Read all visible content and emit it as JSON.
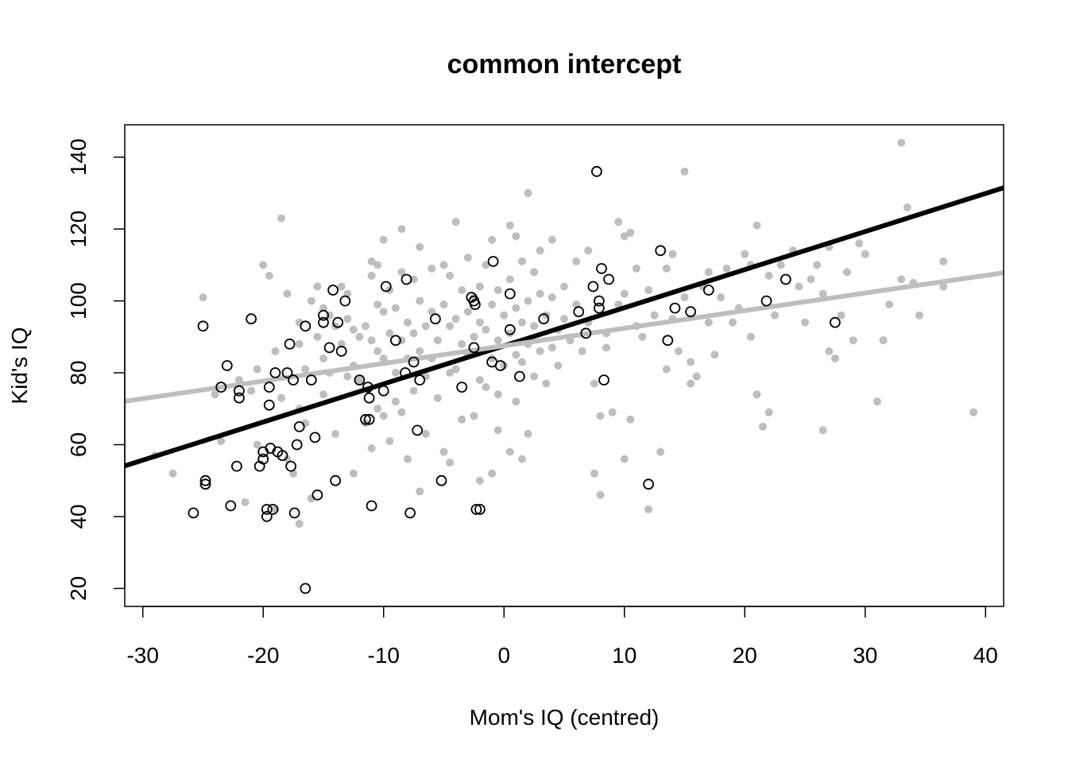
{
  "chart_data": {
    "type": "scatter",
    "title": "common intercept",
    "xlabel": "Mom's IQ (centred)",
    "ylabel": "Kid's IQ",
    "xlim": [
      -31.5,
      41.5
    ],
    "ylim": [
      15,
      149
    ],
    "xticks": [
      -30,
      -20,
      -10,
      0,
      10,
      20,
      30,
      40
    ],
    "yticks": [
      20,
      40,
      60,
      80,
      100,
      120,
      140
    ],
    "grid": false,
    "legend": "none",
    "colors": {
      "filled": "#bebebe",
      "open": "#000000",
      "fit_open": "#000000",
      "fit_filled": "#bebebe"
    },
    "series": [
      {
        "marker": "filled",
        "points": [
          [
            -25,
            101
          ],
          [
            -29,
            57
          ],
          [
            -27.5,
            52
          ],
          [
            -24,
            74
          ],
          [
            -23.5,
            61
          ],
          [
            -22,
            78
          ],
          [
            -21.5,
            44
          ],
          [
            -21,
            75
          ],
          [
            -20.5,
            81
          ],
          [
            -20.5,
            60
          ],
          [
            -20,
            110
          ],
          [
            -19.5,
            107
          ],
          [
            -19,
            86
          ],
          [
            -19,
            42
          ],
          [
            -18.5,
            123
          ],
          [
            -18.5,
            73
          ],
          [
            -18,
            102
          ],
          [
            -18,
            56
          ],
          [
            -17.5,
            52
          ],
          [
            -17,
            94
          ],
          [
            -17,
            88
          ],
          [
            -17,
            70
          ],
          [
            -17,
            38
          ],
          [
            -16.5,
            81
          ],
          [
            -16.5,
            66
          ],
          [
            -16,
            100
          ],
          [
            -16,
            45
          ],
          [
            -15.5,
            104
          ],
          [
            -15.5,
            90
          ],
          [
            -15,
            98
          ],
          [
            -15,
            84
          ],
          [
            -15,
            74
          ],
          [
            -14.5,
            96
          ],
          [
            -14.5,
            80
          ],
          [
            -14,
            93
          ],
          [
            -14,
            63
          ],
          [
            -13.5,
            104
          ],
          [
            -13.5,
            88
          ],
          [
            -13,
            102
          ],
          [
            -13,
            95
          ],
          [
            -13,
            79
          ],
          [
            -12.5,
            92
          ],
          [
            -12.5,
            82
          ],
          [
            -12.5,
            52
          ],
          [
            -12,
            90
          ],
          [
            -12,
            78
          ],
          [
            -11.5,
            93
          ],
          [
            -11.5,
            66
          ],
          [
            -11,
            111
          ],
          [
            -11,
            107
          ],
          [
            -11,
            89
          ],
          [
            -11,
            59
          ],
          [
            -10.5,
            110
          ],
          [
            -10.5,
            99
          ],
          [
            -10.5,
            86
          ],
          [
            -10.5,
            70
          ],
          [
            -10,
            117
          ],
          [
            -10,
            97
          ],
          [
            -10,
            84
          ],
          [
            -10,
            68
          ],
          [
            -9.5,
            103
          ],
          [
            -9.5,
            91
          ],
          [
            -9.5,
            61
          ],
          [
            -9,
            98
          ],
          [
            -9,
            80
          ],
          [
            -9,
            72
          ],
          [
            -8.5,
            120
          ],
          [
            -8.5,
            108
          ],
          [
            -8.5,
            89
          ],
          [
            -8.5,
            69
          ],
          [
            -8,
            94
          ],
          [
            -8,
            84
          ],
          [
            -8,
            56
          ],
          [
            -7.5,
            106
          ],
          [
            -7.5,
            91
          ],
          [
            -7.5,
            75
          ],
          [
            -7,
            115
          ],
          [
            -7,
            100
          ],
          [
            -7,
            86
          ],
          [
            -7,
            47
          ],
          [
            -6.5,
            93
          ],
          [
            -6.5,
            79
          ],
          [
            -6.5,
            63
          ],
          [
            -6,
            109
          ],
          [
            -6,
            97
          ],
          [
            -6,
            84
          ],
          [
            -5.5,
            89
          ],
          [
            -5.5,
            73
          ],
          [
            -5,
            110
          ],
          [
            -5,
            99
          ],
          [
            -5,
            58
          ],
          [
            -4.5,
            107
          ],
          [
            -4.5,
            93
          ],
          [
            -4.5,
            80
          ],
          [
            -4.5,
            55
          ],
          [
            -4,
            122
          ],
          [
            -4,
            95
          ],
          [
            -4,
            81
          ],
          [
            -3.5,
            103
          ],
          [
            -3.5,
            88
          ],
          [
            -3.5,
            67
          ],
          [
            -3,
            112
          ],
          [
            -3,
            97
          ],
          [
            -3,
            85
          ],
          [
            -2.5,
            101
          ],
          [
            -2.5,
            90
          ],
          [
            -2.5,
            68
          ],
          [
            -2,
            104
          ],
          [
            -2,
            94
          ],
          [
            -2,
            78
          ],
          [
            -2,
            50
          ],
          [
            -1.5,
            110
          ],
          [
            -1.5,
            92
          ],
          [
            -1.5,
            76
          ],
          [
            -1,
            117
          ],
          [
            -1,
            99
          ],
          [
            -1,
            84
          ],
          [
            -1,
            52
          ],
          [
            -0.5,
            103
          ],
          [
            -0.5,
            89
          ],
          [
            -0.5,
            74
          ],
          [
            -0.5,
            64
          ],
          [
            0,
            96
          ],
          [
            0,
            82
          ],
          [
            0.5,
            121
          ],
          [
            0.5,
            106
          ],
          [
            0.5,
            91
          ],
          [
            0.5,
            58
          ],
          [
            1,
            118
          ],
          [
            1,
            98
          ],
          [
            1,
            85
          ],
          [
            1,
            72
          ],
          [
            1.5,
            111
          ],
          [
            1.5,
            94
          ],
          [
            1.5,
            83
          ],
          [
            1.5,
            56
          ],
          [
            2,
            130
          ],
          [
            2,
            100
          ],
          [
            2,
            88
          ],
          [
            2,
            63
          ],
          [
            2.5,
            108
          ],
          [
            2.5,
            93
          ],
          [
            2.5,
            79
          ],
          [
            3,
            114
          ],
          [
            3,
            102
          ],
          [
            3,
            86
          ],
          [
            3.5,
            96
          ],
          [
            3.5,
            77
          ],
          [
            4,
            117
          ],
          [
            4,
            101
          ],
          [
            4,
            87
          ],
          [
            4.5,
            92
          ],
          [
            4.5,
            82
          ],
          [
            5,
            104
          ],
          [
            5,
            95
          ],
          [
            5.5,
            89
          ],
          [
            6,
            111
          ],
          [
            6,
            99
          ],
          [
            6.5,
            86
          ],
          [
            7,
            114
          ],
          [
            7,
            94
          ],
          [
            7.5,
            52
          ],
          [
            7.5,
            77
          ],
          [
            8,
            46
          ],
          [
            8,
            68
          ],
          [
            8.5,
            91
          ],
          [
            8.5,
            87
          ],
          [
            9,
            69
          ],
          [
            9.5,
            122
          ],
          [
            9.5,
            99
          ],
          [
            10,
            118
          ],
          [
            10,
            102
          ],
          [
            10,
            56
          ],
          [
            10.5,
            119
          ],
          [
            10.5,
            67
          ],
          [
            11,
            109
          ],
          [
            11,
            93
          ],
          [
            11.5,
            90
          ],
          [
            12,
            103
          ],
          [
            12,
            42
          ],
          [
            12.5,
            96
          ],
          [
            13,
            58
          ],
          [
            13.5,
            109
          ],
          [
            13.5,
            81
          ],
          [
            14,
            113
          ],
          [
            14,
            95
          ],
          [
            14.5,
            86
          ],
          [
            15,
            136
          ],
          [
            15,
            101
          ],
          [
            15.5,
            77
          ],
          [
            15.5,
            83
          ],
          [
            16,
            79
          ],
          [
            16.5,
            104
          ],
          [
            17,
            108
          ],
          [
            17,
            94
          ],
          [
            17.5,
            85
          ],
          [
            18,
            101
          ],
          [
            18.5,
            109
          ],
          [
            19,
            94
          ],
          [
            19.5,
            98
          ],
          [
            20,
            113
          ],
          [
            20.5,
            110
          ],
          [
            20.5,
            90
          ],
          [
            21,
            121
          ],
          [
            21,
            74
          ],
          [
            21.5,
            65
          ],
          [
            22,
            107
          ],
          [
            22,
            69
          ],
          [
            22.5,
            96
          ],
          [
            23,
            110
          ],
          [
            24,
            114
          ],
          [
            24.5,
            104
          ],
          [
            25,
            94
          ],
          [
            25.5,
            106
          ],
          [
            26,
            110
          ],
          [
            26.5,
            102
          ],
          [
            26.5,
            64
          ],
          [
            27,
            115
          ],
          [
            27,
            86
          ],
          [
            27.5,
            84
          ],
          [
            28,
            96
          ],
          [
            28.5,
            108
          ],
          [
            29,
            89
          ],
          [
            29.5,
            116
          ],
          [
            30,
            113
          ],
          [
            31,
            72
          ],
          [
            31.5,
            89
          ],
          [
            32,
            99
          ],
          [
            33,
            144
          ],
          [
            33,
            106
          ],
          [
            33.5,
            126
          ],
          [
            34,
            105
          ],
          [
            34.5,
            96
          ],
          [
            36.5,
            111
          ],
          [
            36.5,
            104
          ],
          [
            39,
            69
          ]
        ]
      },
      {
        "marker": "open",
        "points": [
          [
            -25,
            93
          ],
          [
            -23,
            82
          ],
          [
            -22,
            73
          ],
          [
            -22,
            75
          ],
          [
            -23.5,
            76
          ],
          [
            -21,
            95
          ],
          [
            -19.5,
            76
          ],
          [
            -19.5,
            71
          ],
          [
            -19,
            80
          ],
          [
            -18,
            80
          ],
          [
            -17.5,
            78
          ],
          [
            -17.8,
            88
          ],
          [
            -17,
            65
          ],
          [
            -17.2,
            60
          ],
          [
            -16.5,
            93
          ],
          [
            -16,
            78
          ],
          [
            -15.7,
            62
          ],
          [
            -15.5,
            46
          ],
          [
            -15,
            94
          ],
          [
            -15,
            96
          ],
          [
            -14.5,
            87
          ],
          [
            -14.2,
            103
          ],
          [
            -13.8,
            94
          ],
          [
            -13.5,
            86
          ],
          [
            -13.2,
            100
          ],
          [
            -14,
            50
          ],
          [
            -12,
            78
          ],
          [
            -11.5,
            67
          ],
          [
            -11.3,
            76
          ],
          [
            -11.2,
            73
          ],
          [
            -11.2,
            67
          ],
          [
            -11,
            43
          ],
          [
            -10,
            75
          ],
          [
            -9.8,
            104
          ],
          [
            -9,
            89
          ],
          [
            -8.2,
            80
          ],
          [
            -8.1,
            106
          ],
          [
            -7.8,
            41
          ],
          [
            -7.5,
            83
          ],
          [
            -7.2,
            64
          ],
          [
            -7,
            78
          ],
          [
            -5.7,
            95
          ],
          [
            -5.2,
            50
          ],
          [
            -3.5,
            76
          ],
          [
            -2.7,
            101
          ],
          [
            -2.5,
            100
          ],
          [
            -2.4,
            99
          ],
          [
            -2.3,
            42
          ],
          [
            -2,
            42
          ],
          [
            -2.5,
            87
          ],
          [
            -1,
            83
          ],
          [
            -0.9,
            111
          ],
          [
            -0.3,
            82
          ],
          [
            0.5,
            102
          ],
          [
            0.5,
            92
          ],
          [
            1.3,
            79
          ],
          [
            3.3,
            95
          ],
          [
            6.2,
            97
          ],
          [
            6.8,
            91
          ],
          [
            7.4,
            104
          ],
          [
            7.7,
            136
          ],
          [
            7.9,
            100
          ],
          [
            7.9,
            98
          ],
          [
            8.1,
            109
          ],
          [
            8.3,
            78
          ],
          [
            8.7,
            106
          ],
          [
            12,
            49
          ],
          [
            13,
            114
          ],
          [
            13.6,
            89
          ],
          [
            14.2,
            98
          ],
          [
            15.5,
            97
          ],
          [
            17,
            103
          ],
          [
            21.8,
            100
          ],
          [
            23.4,
            106
          ],
          [
            27.5,
            94
          ],
          [
            -25.8,
            41
          ],
          [
            -24.8,
            50
          ],
          [
            -24.8,
            49
          ],
          [
            -22.7,
            43
          ],
          [
            -22.2,
            54
          ],
          [
            -20.3,
            54
          ],
          [
            -20,
            56
          ],
          [
            -20,
            58
          ],
          [
            -19.7,
            40
          ],
          [
            -19.7,
            42
          ],
          [
            -19.4,
            59
          ],
          [
            -19.2,
            42
          ],
          [
            -18.8,
            58
          ],
          [
            -18.4,
            57
          ],
          [
            -17.7,
            54
          ],
          [
            -17.4,
            41
          ],
          [
            -16.5,
            20
          ]
        ]
      }
    ],
    "fit_lines": [
      {
        "marker": "open",
        "intercept": 87.5,
        "slope": 1.06,
        "x": [
          -31.5,
          41.5
        ]
      },
      {
        "marker": "filled",
        "intercept": 87.5,
        "slope": 0.49,
        "x": [
          -31.5,
          41.5
        ]
      }
    ]
  }
}
